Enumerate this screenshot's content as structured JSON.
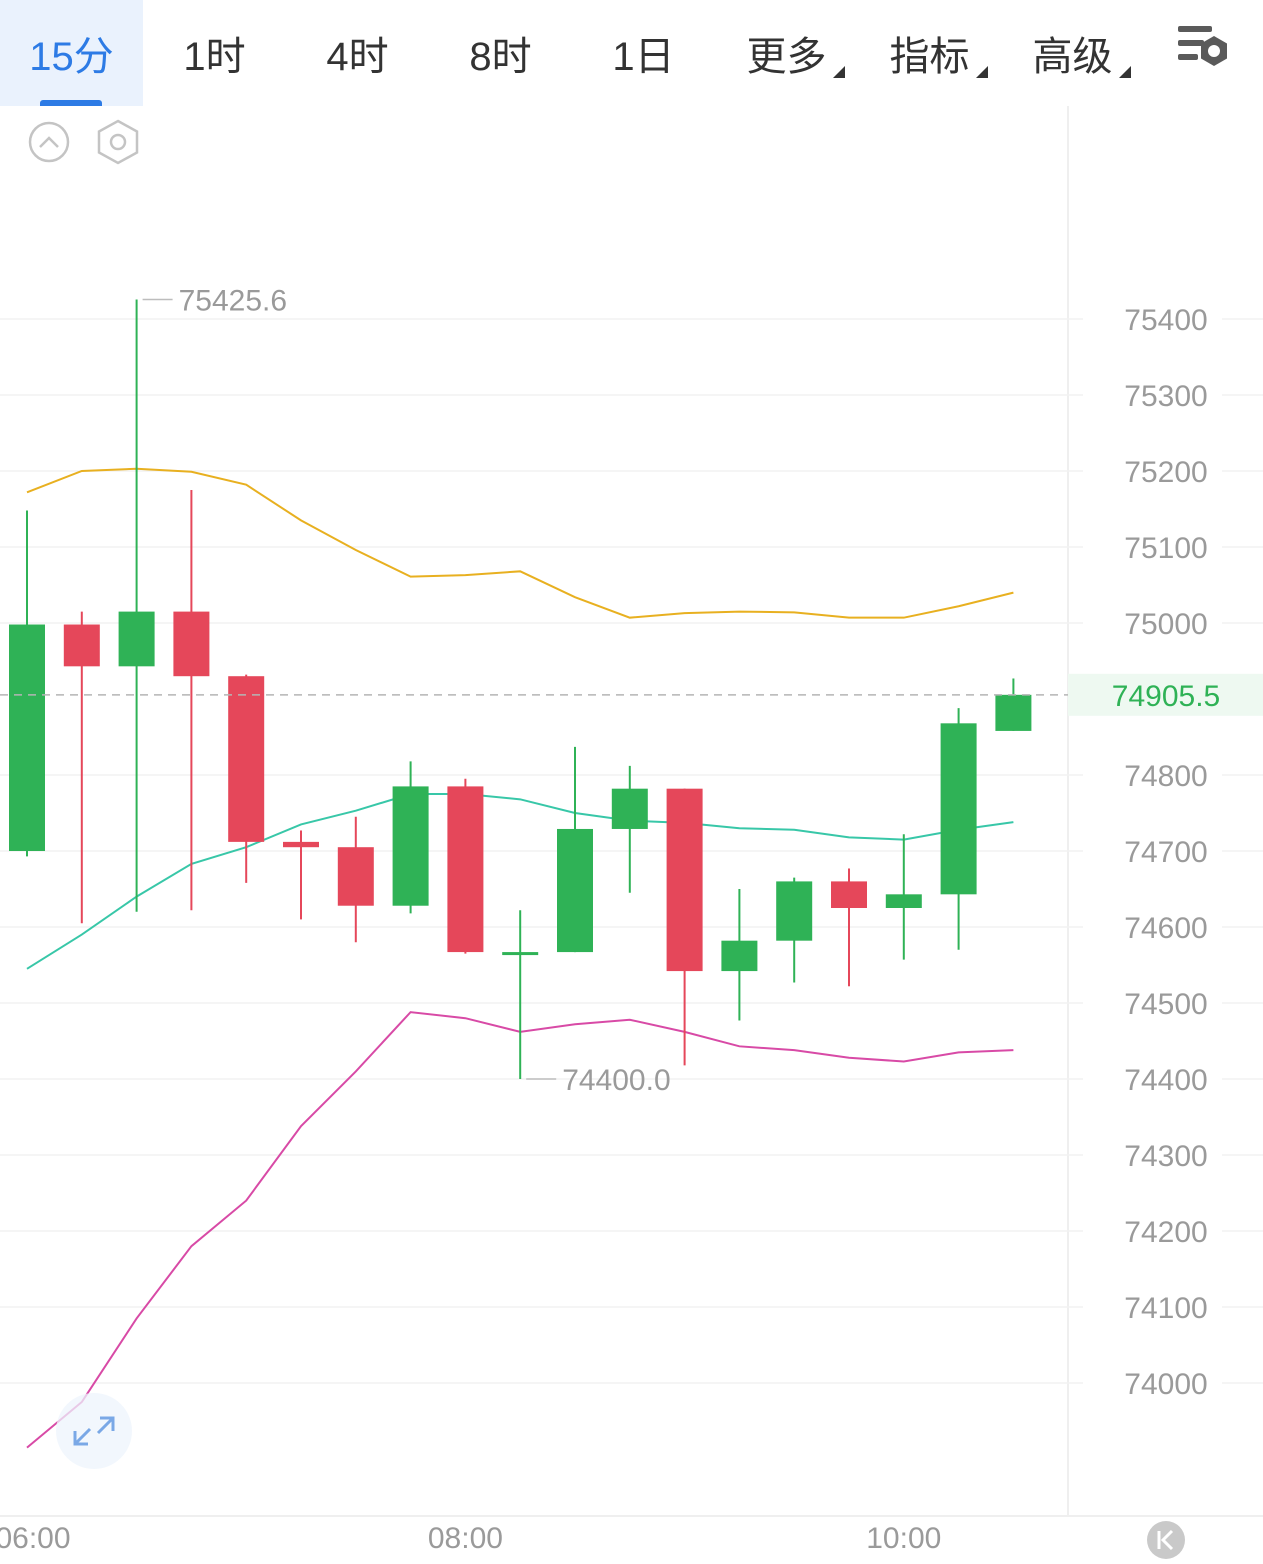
{
  "tabs": [
    {
      "label": "15分",
      "active": true,
      "dropdown": false
    },
    {
      "label": "1时",
      "active": false,
      "dropdown": false
    },
    {
      "label": "4时",
      "active": false,
      "dropdown": false
    },
    {
      "label": "8时",
      "active": false,
      "dropdown": false
    },
    {
      "label": "1日",
      "active": false,
      "dropdown": false
    },
    {
      "label": "更多",
      "active": false,
      "dropdown": true
    },
    {
      "label": "指标",
      "active": false,
      "dropdown": true
    },
    {
      "label": "高级",
      "active": false,
      "dropdown": true
    }
  ],
  "icons": {
    "settings": "chart-settings-icon",
    "collapse": "chevron-up-icon",
    "hexagon": "hexagon-settings-icon",
    "expand": "expand-icon",
    "scroll_latest": "scroll-latest-icon"
  },
  "colors": {
    "up": "#2fb256",
    "down": "#e5475a",
    "accent": "#2d7be5",
    "upper_band": "#e8b020",
    "middle_band": "#38c7a8",
    "lower_band": "#d84aa6"
  },
  "chart_data": {
    "type": "candlestick",
    "y_range": [
      73825,
      75575
    ],
    "y_ticks": [
      75400,
      75300,
      75200,
      75100,
      75000,
      74800,
      74700,
      74600,
      74500,
      74400,
      74300,
      74200,
      74100,
      74000
    ],
    "x_ticks": [
      {
        "label": "06:00",
        "index": 0
      },
      {
        "label": "08:00",
        "index": 8
      },
      {
        "label": "10:00",
        "index": 16
      }
    ],
    "candles": [
      {
        "open": 74700,
        "high": 75148,
        "low": 74693,
        "close": 74998
      },
      {
        "open": 74998,
        "high": 75015,
        "low": 74605,
        "close": 74943
      },
      {
        "open": 74943,
        "high": 75425.6,
        "low": 74620,
        "close": 75015
      },
      {
        "open": 75015,
        "high": 75175,
        "low": 74622,
        "close": 74930
      },
      {
        "open": 74930,
        "high": 74932,
        "low": 74658,
        "close": 74712
      },
      {
        "open": 74712,
        "high": 74727,
        "low": 74610,
        "close": 74705
      },
      {
        "open": 74705,
        "high": 74745,
        "low": 74580,
        "close": 74628
      },
      {
        "open": 74628,
        "high": 74818,
        "low": 74618,
        "close": 74785
      },
      {
        "open": 74785,
        "high": 74795,
        "low": 74565,
        "close": 74567
      },
      {
        "open": 74567,
        "high": 74622,
        "low": 74400.0,
        "close": 74567
      },
      {
        "open": 74567,
        "high": 74837,
        "low": 74567,
        "close": 74729
      },
      {
        "open": 74729,
        "high": 74812,
        "low": 74645,
        "close": 74782
      },
      {
        "open": 74782,
        "high": 74782,
        "low": 74418,
        "close": 74542
      },
      {
        "open": 74542,
        "high": 74650,
        "low": 74477,
        "close": 74582
      },
      {
        "open": 74582,
        "high": 74665,
        "low": 74527,
        "close": 74660
      },
      {
        "open": 74660,
        "high": 74677,
        "low": 74522,
        "close": 74625
      },
      {
        "open": 74625,
        "high": 74722,
        "low": 74557,
        "close": 74643
      },
      {
        "open": 74643,
        "high": 74888,
        "low": 74570,
        "close": 74868
      },
      {
        "open": 74858,
        "high": 74927,
        "low": 74858,
        "close": 74905.5
      }
    ],
    "bands": {
      "upper": [
        75172,
        75200,
        75203,
        75199,
        75182,
        75135,
        75096,
        75061,
        75063,
        75068,
        75034,
        75007,
        75013,
        75015,
        75014,
        75007,
        75007,
        75022,
        75040
      ],
      "middle": [
        74545,
        74590,
        74640,
        74683,
        74705,
        74735,
        74753,
        74775,
        74775,
        74768,
        74750,
        74740,
        74737,
        74730,
        74728,
        74718,
        74715,
        74728,
        74738
      ],
      "lower": [
        73915,
        73975,
        74085,
        74180,
        74240,
        74338,
        74410,
        74488,
        74480,
        74462,
        74472,
        74478,
        74462,
        74443,
        74438,
        74428,
        74423,
        74435,
        74438
      ]
    },
    "annotations": {
      "high_label": "75425.6",
      "low_label": "74400.0",
      "last_price": "74905.5"
    }
  }
}
